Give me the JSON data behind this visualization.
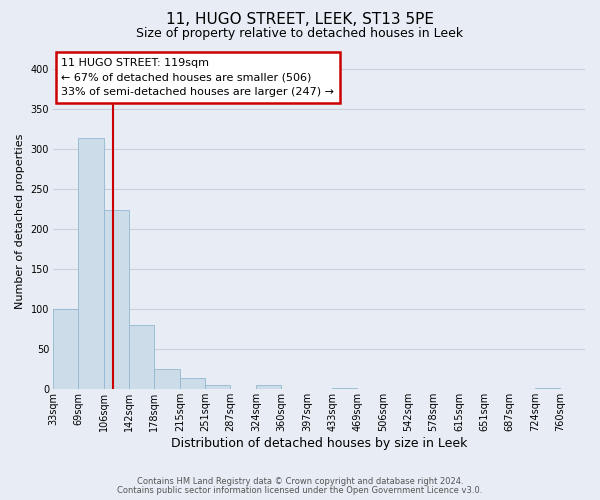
{
  "title": "11, HUGO STREET, LEEK, ST13 5PE",
  "subtitle": "Size of property relative to detached houses in Leek",
  "xlabel": "Distribution of detached houses by size in Leek",
  "ylabel": "Number of detached properties",
  "bin_edges": [
    33,
    69,
    106,
    142,
    178,
    215,
    251,
    287,
    324,
    360,
    397,
    433,
    469,
    506,
    542,
    578,
    615,
    651,
    687,
    724,
    760
  ],
  "bar_heights": [
    100,
    313,
    224,
    80,
    25,
    14,
    5,
    0,
    5,
    0,
    0,
    2,
    0,
    0,
    0,
    0,
    0,
    0,
    0,
    2
  ],
  "bar_color": "#ccdce9",
  "bar_edgecolor": "#92b8d0",
  "property_size": 119,
  "vline_color": "#cc0000",
  "annotation_line1": "11 HUGO STREET: 119sqm",
  "annotation_line2": "← 67% of detached houses are smaller (506)",
  "annotation_line3": "33% of semi-detached houses are larger (247) →",
  "annotation_box_edgecolor": "#cc0000",
  "ylim": [
    0,
    420
  ],
  "yticks": [
    0,
    50,
    100,
    150,
    200,
    250,
    300,
    350,
    400
  ],
  "footnote1": "Contains HM Land Registry data © Crown copyright and database right 2024.",
  "footnote2": "Contains public sector information licensed under the Open Government Licence v3.0.",
  "bg_color": "#e8edf5",
  "grid_color": "#c8d0dc",
  "title_fontsize": 11,
  "subtitle_fontsize": 9,
  "xlabel_fontsize": 9,
  "ylabel_fontsize": 8,
  "tick_label_fontsize": 7,
  "annotation_fontsize": 8,
  "footnote_fontsize": 6
}
